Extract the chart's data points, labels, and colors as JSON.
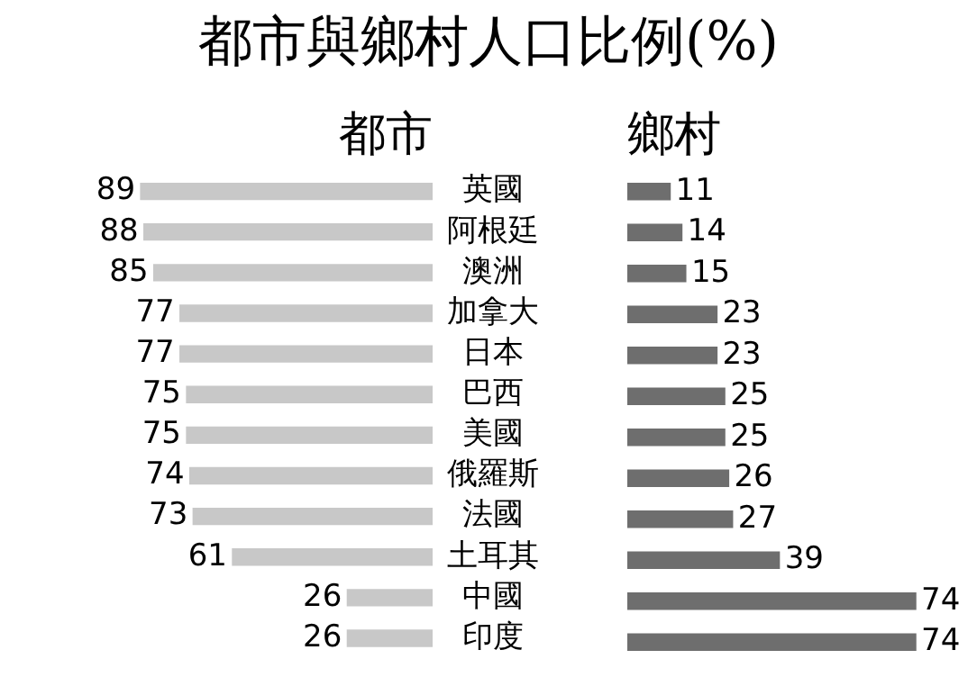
{
  "chart_data": [
    {
      "type": "bar",
      "title": "都市與鄉村人口比例(%)",
      "orientation": "horizontal",
      "categories": [
        "英國",
        "阿根廷",
        "澳洲",
        "加拿大",
        "日本",
        "巴西",
        "美國",
        "俄羅斯",
        "法國",
        "土耳其",
        "中國",
        "印度"
      ],
      "series": [
        {
          "name": "都市",
          "color": "#c8c8c8",
          "values": [
            89,
            88,
            85,
            77,
            77,
            75,
            75,
            74,
            73,
            61,
            26,
            26
          ]
        }
      ],
      "tick_labels": "y",
      "data_labels": true
    },
    {
      "type": "bar",
      "orientation": "horizontal",
      "categories": [
        null,
        null,
        null,
        null,
        null,
        null,
        null,
        null,
        null,
        null,
        null,
        null
      ],
      "series": [
        {
          "name": "鄉村",
          "color": "#6e6e6e",
          "values": [
            11,
            14,
            15,
            23,
            23,
            25,
            25,
            26,
            27,
            39,
            74,
            74
          ]
        }
      ],
      "tick_labels": false,
      "data_labels": true
    }
  ]
}
